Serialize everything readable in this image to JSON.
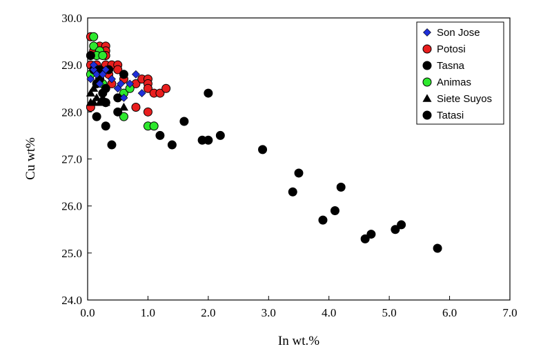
{
  "chart_data": {
    "type": "scatter",
    "xlabel": "In wt.%",
    "ylabel": "Cu wt%",
    "xlim": [
      0,
      7
    ],
    "ylim": [
      24,
      30
    ],
    "xticks": [
      "0.0",
      "1.0",
      "2.0",
      "3.0",
      "4.0",
      "5.0",
      "6.0",
      "7.0"
    ],
    "yticks": [
      "24.0",
      "25.0",
      "26.0",
      "27.0",
      "28.0",
      "29.0",
      "30.0"
    ],
    "grid": false,
    "legend": "top-right",
    "series": [
      {
        "name": "Son Jose",
        "marker": "diamond",
        "color": "#1f2fd8",
        "points": [
          [
            0.05,
            28.7
          ],
          [
            0.1,
            28.9
          ],
          [
            0.15,
            28.8
          ],
          [
            0.2,
            28.6
          ],
          [
            0.3,
            28.9
          ],
          [
            0.4,
            28.7
          ],
          [
            0.5,
            28.5
          ],
          [
            0.6,
            28.3
          ],
          [
            0.7,
            28.6
          ],
          [
            0.8,
            28.8
          ],
          [
            0.9,
            28.4
          ],
          [
            0.1,
            29.0
          ],
          [
            0.25,
            28.8
          ],
          [
            0.55,
            28.6
          ]
        ]
      },
      {
        "name": "Potosi",
        "marker": "circle",
        "color": "#e81e1e",
        "points": [
          [
            0.05,
            29.6
          ],
          [
            0.1,
            29.3
          ],
          [
            0.2,
            29.4
          ],
          [
            0.3,
            29.4
          ],
          [
            0.3,
            29.3
          ],
          [
            0.3,
            29.2
          ],
          [
            0.3,
            29.0
          ],
          [
            0.4,
            29.0
          ],
          [
            0.5,
            29.0
          ],
          [
            0.05,
            29.0
          ],
          [
            0.15,
            29.0
          ],
          [
            0.2,
            28.9
          ],
          [
            0.35,
            28.8
          ],
          [
            0.5,
            28.9
          ],
          [
            0.6,
            28.7
          ],
          [
            0.8,
            28.6
          ],
          [
            0.9,
            28.7
          ],
          [
            1.0,
            28.7
          ],
          [
            1.0,
            28.6
          ],
          [
            1.0,
            28.5
          ],
          [
            1.1,
            28.4
          ],
          [
            1.2,
            28.4
          ],
          [
            1.3,
            28.5
          ],
          [
            0.8,
            28.1
          ],
          [
            1.0,
            28.0
          ],
          [
            0.05,
            28.1
          ],
          [
            0.2,
            28.7
          ],
          [
            0.4,
            28.6
          ]
        ]
      },
      {
        "name": "Tasna",
        "marker": "circle",
        "color": "#000000",
        "points": [
          [
            0.05,
            29.2
          ],
          [
            0.1,
            28.9
          ],
          [
            0.15,
            28.6
          ],
          [
            0.2,
            28.7
          ],
          [
            0.25,
            28.4
          ],
          [
            0.3,
            28.5
          ],
          [
            0.35,
            28.9
          ],
          [
            0.5,
            28.3
          ],
          [
            0.6,
            28.8
          ],
          [
            0.5,
            28.0
          ],
          [
            0.15,
            27.9
          ],
          [
            0.3,
            27.7
          ],
          [
            0.4,
            27.3
          ],
          [
            0.2,
            28.9
          ],
          [
            0.3,
            28.2
          ]
        ]
      },
      {
        "name": "Animas",
        "marker": "circle",
        "color": "#2ee82e",
        "points": [
          [
            0.1,
            29.6
          ],
          [
            0.1,
            29.4
          ],
          [
            0.2,
            29.3
          ],
          [
            0.15,
            29.2
          ],
          [
            0.25,
            29.2
          ],
          [
            0.05,
            28.8
          ],
          [
            0.15,
            28.9
          ],
          [
            0.2,
            28.7
          ],
          [
            0.25,
            28.6
          ],
          [
            0.3,
            28.2
          ],
          [
            0.6,
            28.4
          ],
          [
            0.7,
            28.5
          ],
          [
            0.6,
            27.9
          ],
          [
            1.0,
            27.7
          ],
          [
            1.1,
            27.7
          ]
        ]
      },
      {
        "name": "Siete Suyos",
        "marker": "triangle",
        "color": "#000000",
        "points": [
          [
            0.05,
            28.4
          ],
          [
            0.05,
            28.2
          ],
          [
            0.1,
            28.5
          ],
          [
            0.15,
            28.3
          ],
          [
            0.2,
            28.2
          ],
          [
            0.25,
            28.3
          ],
          [
            0.3,
            28.2
          ],
          [
            0.6,
            28.1
          ],
          [
            0.1,
            28.2
          ]
        ]
      },
      {
        "name": "Tatasi",
        "marker": "circle",
        "color": "#000000",
        "points": [
          [
            1.2,
            27.5
          ],
          [
            1.4,
            27.3
          ],
          [
            1.6,
            27.8
          ],
          [
            1.9,
            27.4
          ],
          [
            2.0,
            27.4
          ],
          [
            2.0,
            28.4
          ],
          [
            2.2,
            27.5
          ],
          [
            2.9,
            27.2
          ],
          [
            3.4,
            26.3
          ],
          [
            3.5,
            26.7
          ],
          [
            3.9,
            25.7
          ],
          [
            4.1,
            25.9
          ],
          [
            4.2,
            26.4
          ],
          [
            4.6,
            25.3
          ],
          [
            4.7,
            25.4
          ],
          [
            5.1,
            25.5
          ],
          [
            5.2,
            25.6
          ],
          [
            5.8,
            25.1
          ]
        ]
      }
    ]
  }
}
